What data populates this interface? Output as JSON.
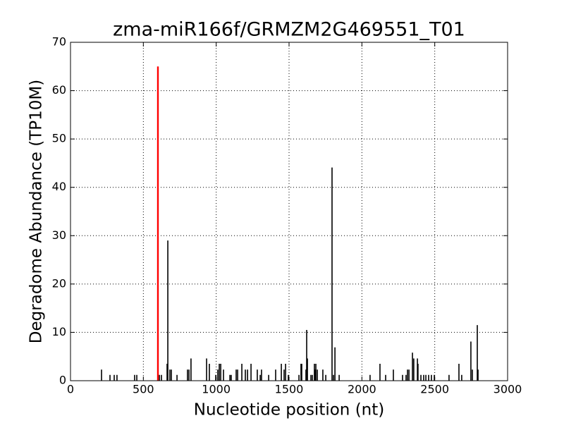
{
  "chart_data": {
    "type": "bar",
    "title": "zma-miR166f/GRMZM2G469551_T01",
    "xlabel": "Nucleotide position (nt)",
    "ylabel": "Degradome Abundance (TP10M)",
    "xlim": [
      0,
      3000
    ],
    "xticks": [
      0,
      500,
      1000,
      1500,
      2000,
      2500,
      3000
    ],
    "ylim": [
      0,
      70
    ],
    "yticks": [
      0,
      10,
      20,
      30,
      40,
      50,
      60,
      70
    ],
    "grid": true,
    "series": [
      {
        "color": "#000000",
        "x": [
          213,
          271,
          300,
          319,
          440,
          455,
          610,
          624,
          663,
          668,
          682,
          692,
          731,
          803,
          813,
          827,
          934,
          953,
          997,
          1011,
          1021,
          1031,
          1050,
          1094,
          1103,
          1137,
          1147,
          1176,
          1200,
          1215,
          1239,
          1282,
          1302,
          1311,
          1360,
          1408,
          1447,
          1466,
          1476,
          1495,
          1568,
          1582,
          1587,
          1616,
          1621,
          1626,
          1650,
          1660,
          1674,
          1679,
          1684,
          1694,
          1732,
          1752,
          1795,
          1805,
          1815,
          1844,
          2056,
          2124,
          2163,
          2216,
          2279,
          2303,
          2313,
          2323,
          2347,
          2356,
          2381,
          2385,
          2405,
          2424,
          2439,
          2458,
          2477,
          2497,
          2598,
          2666,
          2685,
          2748,
          2758,
          2792,
          2797
        ],
        "values": [
          2.3,
          1.2,
          1.2,
          1.2,
          1.2,
          1.2,
          1.2,
          1.2,
          3.5,
          29,
          2.3,
          2.3,
          1.2,
          2.3,
          2.3,
          4.6,
          4.6,
          3.5,
          1.2,
          2.3,
          3.5,
          3.5,
          2.3,
          1.2,
          1.2,
          2.3,
          2.3,
          3.5,
          2.3,
          2.3,
          3.5,
          2.3,
          1.2,
          2.3,
          1.2,
          2.3,
          3.5,
          2.3,
          3.5,
          1.2,
          1.2,
          3.5,
          3.5,
          2.3,
          10.5,
          4.6,
          1.2,
          1.2,
          3.5,
          2.3,
          3.5,
          2.3,
          2.3,
          1.2,
          44.1,
          1.2,
          6.9,
          1.2,
          1.2,
          3.5,
          1.2,
          2.3,
          1.2,
          1.2,
          2.3,
          2.3,
          5.8,
          4.6,
          4.6,
          3.5,
          1.2,
          1.2,
          1.2,
          1.2,
          1.2,
          1.2,
          1.2,
          3.5,
          1.2,
          8.1,
          2.3,
          11.5,
          2.3
        ]
      },
      {
        "color": "#ff0000",
        "x": [
          600
        ],
        "values": [
          65
        ]
      }
    ]
  }
}
